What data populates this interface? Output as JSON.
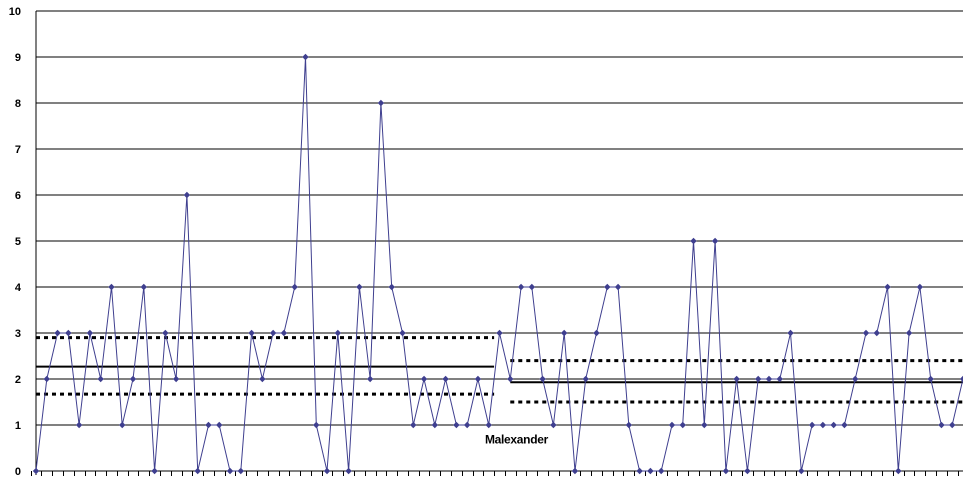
{
  "chart_data": {
    "type": "line",
    "title": "",
    "xlabel": "",
    "ylabel": "",
    "ylim": [
      0,
      10
    ],
    "y_ticks": [
      "0",
      "1",
      "2",
      "3",
      "4",
      "5",
      "6",
      "7",
      "8",
      "9",
      "10"
    ],
    "grid": "horizontal",
    "legend": "none",
    "series": [
      {
        "color": "#3f3f8f",
        "marker": "diamond",
        "values": [
          0,
          2,
          3,
          3,
          1,
          3,
          2,
          4,
          1,
          2,
          4,
          0,
          3,
          2,
          6,
          0,
          1,
          1,
          0,
          0,
          3,
          2,
          3,
          3,
          4,
          9,
          1,
          0,
          3,
          0,
          4,
          2,
          8,
          4,
          3,
          1,
          2,
          1,
          2,
          1,
          1,
          2,
          1,
          3,
          2,
          4,
          4,
          2,
          1,
          3,
          0,
          2,
          3,
          4,
          4,
          1,
          0,
          0,
          0,
          1,
          1,
          5,
          1,
          5,
          0,
          2,
          0,
          2,
          2,
          2,
          3,
          0,
          1,
          1,
          1,
          1,
          2,
          3,
          3,
          4,
          0,
          3,
          4,
          2,
          1,
          1,
          2
        ]
      }
    ],
    "reference_lines": {
      "left": {
        "start_index": 0,
        "end_index": 42.5,
        "mean": 2.27,
        "upper": 2.9,
        "lower": 1.67
      },
      "right": {
        "start_index": 44,
        "end_index": 86,
        "mean": 1.93,
        "upper": 2.4,
        "lower": 1.5
      }
    },
    "annotations": [
      {
        "text": "Malexander",
        "x_index": 41,
        "y": 0.6
      }
    ]
  }
}
